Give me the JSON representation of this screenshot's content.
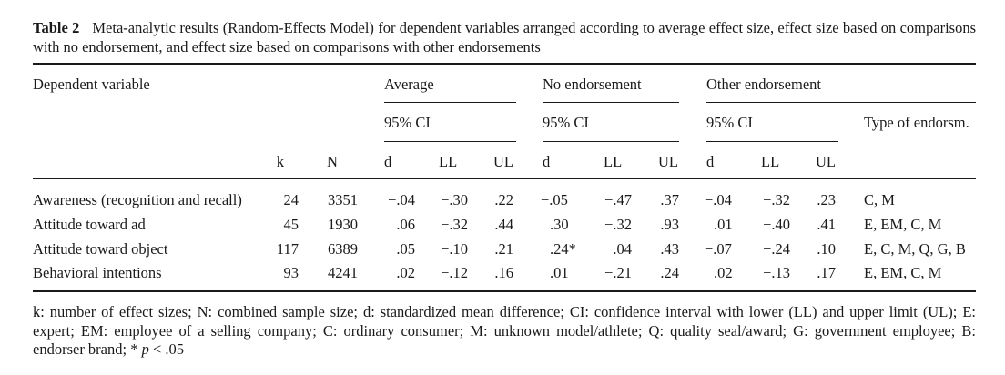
{
  "caption": {
    "label": "Table 2",
    "text": "Meta-analytic results (Random-Effects Model) for dependent variables arranged according to average effect size, effect size based on comparisons with no endorsement, and effect size based on comparisons with other endorsements"
  },
  "header": {
    "dependent_variable": "Dependent variable",
    "groups": [
      "Average",
      "No endorsement",
      "Other endorsement"
    ],
    "ci_label": "95% CI",
    "type_label": "Type of endorsm.",
    "k": "k",
    "n": "N",
    "d": "d",
    "ll": "LL",
    "ul": "UL"
  },
  "rows": [
    {
      "variable": "Awareness (recognition and recall)",
      "k": "24",
      "n": "3351",
      "avg_d": "−.04",
      "avg_ll": "−.30",
      "avg_ul": ".22",
      "no_d": "−.05",
      "no_ll": "−.47",
      "no_ul": ".37",
      "oth_d": "−.04",
      "oth_ll": "−.32",
      "oth_ul": ".23",
      "type": "C, M"
    },
    {
      "variable": "Attitude toward ad",
      "k": "45",
      "n": "1930",
      "avg_d": ".06",
      "avg_ll": "−.32",
      "avg_ul": ".44",
      "no_d": ".30",
      "no_ll": "−.32",
      "no_ul": ".93",
      "oth_d": ".01",
      "oth_ll": "−.40",
      "oth_ul": ".41",
      "type": "E, EM, C, M"
    },
    {
      "variable": "Attitude toward object",
      "k": "117",
      "n": "6389",
      "avg_d": ".05",
      "avg_ll": "−.10",
      "avg_ul": ".21",
      "no_d": ".24*",
      "no_ll": ".04",
      "no_ul": ".43",
      "oth_d": "−.07",
      "oth_ll": "−.24",
      "oth_ul": ".10",
      "type": "E, C, M, Q, G, B"
    },
    {
      "variable": "Behavioral intentions",
      "k": "93",
      "n": "4241",
      "avg_d": ".02",
      "avg_ll": "−.12",
      "avg_ul": ".16",
      "no_d": ".01",
      "no_ll": "−.21",
      "no_ul": ".24",
      "oth_d": ".02",
      "oth_ll": "−.13",
      "oth_ul": ".17",
      "type": "E, EM, C, M"
    }
  ],
  "footnote": {
    "text": "k: number of effect sizes; N: combined sample size; d: standardized mean difference; CI: confidence interval with lower (LL) and upper limit (UL); E: expert; EM: employee of a selling company; C: ordinary consumer; M: unknown model/athlete; Q: quality seal/award; G: government employee; B: endorser brand; * ",
    "p": "p",
    "p_rest": " < .05"
  }
}
